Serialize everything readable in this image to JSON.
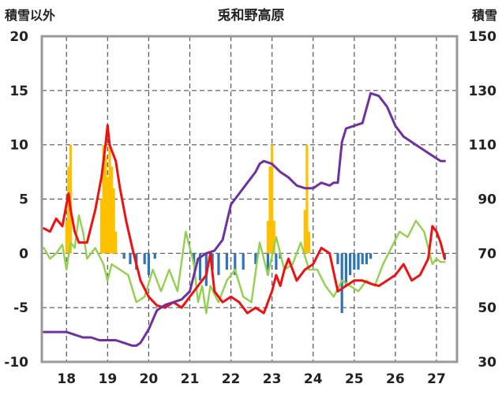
{
  "chart_data": {
    "type": "line",
    "title": "兎和野高原",
    "left_axis_label": "積雪以外",
    "right_axis_label": "積雪",
    "left_ylim": [
      -10,
      20
    ],
    "left_yticks": [
      20,
      15,
      10,
      5,
      0,
      -5,
      -10
    ],
    "right_ylim": [
      30,
      150
    ],
    "right_yticks": [
      150,
      130,
      110,
      90,
      70,
      50,
      30
    ],
    "xlim": [
      17.4,
      27.5
    ],
    "xticks": [
      18,
      19,
      20,
      21,
      22,
      23,
      24,
      25,
      26,
      27
    ],
    "grid": true,
    "colors": {
      "red": "#ee1111",
      "green": "#92d050",
      "purple": "#7030a0",
      "orange": "#ffc000",
      "blue": "#2e75b6"
    },
    "series": [
      {
        "key": "red",
        "axis": "left",
        "x": [
          17.45,
          17.6,
          17.75,
          17.9,
          18.0,
          18.05,
          18.1,
          18.2,
          18.3,
          18.5,
          18.7,
          18.85,
          18.95,
          19.0,
          19.05,
          19.1,
          19.2,
          19.3,
          19.45,
          19.6,
          19.8,
          20.0,
          20.2,
          20.4,
          20.6,
          20.8,
          21.0,
          21.2,
          21.4,
          21.5,
          21.6,
          21.8,
          22.0,
          22.2,
          22.4,
          22.6,
          22.8,
          23.0,
          23.1,
          23.2,
          23.3,
          23.4,
          23.6,
          23.8,
          24.0,
          24.2,
          24.4,
          24.6,
          24.8,
          25.0,
          25.2,
          25.4,
          25.6,
          25.8,
          26.0,
          26.2,
          26.4,
          26.6,
          26.8,
          26.9,
          27.0,
          27.1,
          27.2
        ],
        "y": [
          2.3,
          2.0,
          3.2,
          2.5,
          4.5,
          5.5,
          4.0,
          2.0,
          1.0,
          1.0,
          4.0,
          7.0,
          10.0,
          11.8,
          10.0,
          9.5,
          8.5,
          6.0,
          3.0,
          0.5,
          -2.5,
          -4.0,
          -4.8,
          -5.0,
          -4.5,
          -5.0,
          -4.0,
          -3.0,
          -2.0,
          0.0,
          -3.5,
          -4.5,
          -4.0,
          -4.5,
          -5.5,
          -5.0,
          -5.5,
          -3.5,
          -2.0,
          -3.0,
          -1.5,
          -0.5,
          -2.5,
          -1.5,
          -1.0,
          0.5,
          0.0,
          -3.5,
          -3.0,
          -2.5,
          -2.5,
          -2.8,
          -3.0,
          -2.5,
          -2.0,
          -1.0,
          -2.5,
          -2.0,
          -0.5,
          2.5,
          2.0,
          1.0,
          -0.5
        ]
      },
      {
        "key": "green",
        "axis": "left",
        "x": [
          17.45,
          17.6,
          17.75,
          17.9,
          18.0,
          18.1,
          18.2,
          18.3,
          18.4,
          18.5,
          18.7,
          18.9,
          19.0,
          19.1,
          19.3,
          19.5,
          19.7,
          19.9,
          20.1,
          20.3,
          20.5,
          20.7,
          20.9,
          21.1,
          21.2,
          21.3,
          21.4,
          21.5,
          21.7,
          21.9,
          22.1,
          22.3,
          22.5,
          22.7,
          22.9,
          23.1,
          23.3,
          23.5,
          23.7,
          23.9,
          24.1,
          24.3,
          24.5,
          24.7,
          24.9,
          25.1,
          25.3,
          25.5,
          25.7,
          25.9,
          26.1,
          26.3,
          26.5,
          26.7,
          26.9,
          27.0,
          27.1,
          27.2
        ],
        "y": [
          0.5,
          -0.5,
          0.0,
          0.8,
          -1.5,
          1.0,
          0.5,
          3.5,
          2.0,
          -0.5,
          0.5,
          -1.0,
          -2.5,
          -1.0,
          -1.5,
          -2.0,
          -4.5,
          -4.0,
          -1.5,
          -3.5,
          -1.5,
          -3.5,
          2.0,
          -1.0,
          -4.5,
          -3.0,
          -5.5,
          -3.0,
          -4.5,
          -2.5,
          -1.5,
          -4.0,
          -4.5,
          1.0,
          -2.0,
          1.5,
          -1.5,
          -1.0,
          1.0,
          -1.5,
          -1.5,
          -3.0,
          -4.0,
          -2.5,
          -3.0,
          -3.5,
          -2.5,
          -3.0,
          -1.0,
          0.5,
          2.0,
          1.5,
          3.0,
          2.0,
          -1.0,
          -0.5,
          -0.8,
          -0.8
        ]
      },
      {
        "key": "purple",
        "axis": "right",
        "x": [
          17.45,
          17.8,
          18.0,
          18.2,
          18.4,
          18.6,
          18.8,
          19.0,
          19.2,
          19.4,
          19.6,
          19.7,
          19.8,
          20.0,
          20.2,
          20.4,
          20.6,
          20.8,
          21.0,
          21.2,
          21.4,
          21.6,
          21.8,
          22.0,
          22.2,
          22.4,
          22.6,
          22.7,
          22.8,
          23.0,
          23.2,
          23.4,
          23.6,
          23.8,
          23.9,
          24.0,
          24.2,
          24.4,
          24.5,
          24.6,
          24.7,
          24.8,
          25.0,
          25.2,
          25.4,
          25.6,
          25.8,
          26.0,
          26.2,
          26.4,
          26.6,
          26.8,
          27.0,
          27.1,
          27.2
        ],
        "y": [
          41,
          41,
          41,
          40,
          39,
          39,
          38,
          38,
          38,
          37,
          36,
          36,
          37,
          42,
          49,
          51,
          52,
          53,
          56,
          68,
          70,
          71,
          75,
          88,
          92,
          96,
          100,
          103,
          104,
          103,
          100,
          98,
          95,
          94,
          94,
          94,
          96,
          95,
          96,
          96,
          111,
          116,
          117,
          118,
          129,
          128,
          124,
          117,
          113,
          111,
          109,
          107,
          105,
          104,
          104
        ]
      }
    ],
    "bars": [
      {
        "key": "orange",
        "axis": "left",
        "x": [
          18.0,
          18.05,
          18.1,
          18.85,
          18.9,
          18.95,
          19.0,
          19.05,
          19.1,
          19.15,
          19.2,
          22.9,
          22.95,
          23.0,
          23.05,
          23.8,
          23.85,
          23.9
        ],
        "y": [
          3,
          8,
          10,
          5,
          10,
          9,
          7,
          10,
          8,
          6,
          2,
          3,
          8,
          10,
          3,
          4,
          10,
          2
        ]
      },
      {
        "key": "blue",
        "axis": "left",
        "x": [
          19.4,
          19.55,
          19.7,
          19.9,
          20.0,
          20.15,
          21.1,
          21.25,
          21.4,
          21.55,
          21.7,
          21.9,
          22.1,
          22.3,
          22.6,
          22.9,
          23.1,
          23.2,
          24.6,
          24.7,
          24.8,
          24.9,
          25.0,
          25.1,
          25.2,
          25.3,
          25.4,
          27.2
        ],
        "y": [
          -0.5,
          -1.0,
          -1.5,
          -1.0,
          -2.0,
          -0.5,
          -1.0,
          -2.5,
          -3.0,
          -1.5,
          -2.0,
          -1.5,
          -2.0,
          -1.5,
          -1.0,
          -2.0,
          -1.5,
          -0.5,
          -1.0,
          -5.5,
          -3.0,
          -2.0,
          -1.5,
          -1.5,
          -1.0,
          -1.0,
          -0.5,
          -0.5
        ]
      }
    ]
  }
}
